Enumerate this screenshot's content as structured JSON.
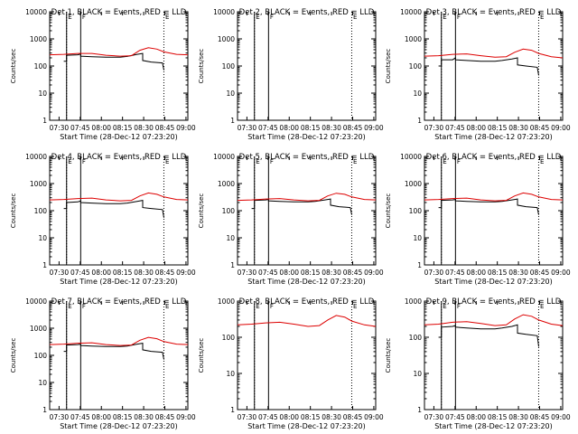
{
  "figure": {
    "panel_titles": [
      "Det 1, BLACK = Events, RED = LLD",
      "Det 2, BLACK = Events, RED = LLD",
      "Det 3, BLACK = Events, RED = LLD",
      "Det 4, BLACK = Events, RED = LLD",
      "Det 5, BLACK = Events, RED = LLD",
      "Det 6, BLACK = Events, RED = LLD",
      "Det 7, BLACK = Events, RED = LLD",
      "Det 8, BLACK = Events, RED = LLD",
      "Det 9, BLACK = Events, RED = LLD"
    ],
    "xlabel": "Start Time (28-Dec-12 07:23:20)",
    "ylabel": "Counts/sec",
    "x_tick_labels": [
      "07:30",
      "07:45",
      "08:00",
      "08:15",
      "08:30",
      "08:45",
      "09:00"
    ],
    "y_tick_labels": [
      "1",
      "10",
      "100",
      "1000",
      "10000"
    ],
    "flag_labels": [
      "E",
      "F",
      "E"
    ]
  },
  "colors": {
    "events": "#000000",
    "lld": "#dd0000",
    "axes": "#000000",
    "background": "#ffffff"
  },
  "chart_data": [
    {
      "type": "line",
      "title": "Det 1, BLACK = Events, RED = LLD",
      "xlabel": "Start Time (28-Dec-12 07:23:20)",
      "ylabel": "Counts/sec",
      "x_unit": "minutes after 07:23:20",
      "xlim": [
        0,
        98
      ],
      "ylim": [
        1,
        10000
      ],
      "y_scale": "log",
      "grid": false,
      "vlines_solid": [
        12,
        22
      ],
      "vlines_dotted": [
        12,
        81
      ],
      "series": [
        {
          "name": "Events",
          "x": [
            10,
            12,
            12,
            20,
            22,
            22,
            30,
            40,
            50,
            55,
            62,
            66,
            66,
            72,
            80,
            81
          ],
          "y": [
            150,
            150,
            250,
            260,
            280,
            230,
            220,
            210,
            210,
            225,
            270,
            290,
            160,
            140,
            130,
            70
          ]
        },
        {
          "name": "LLD",
          "x": [
            0,
            10,
            20,
            30,
            40,
            50,
            58,
            64,
            70,
            76,
            81,
            90,
            98
          ],
          "y": [
            260,
            270,
            290,
            290,
            250,
            230,
            240,
            380,
            470,
            420,
            330,
            270,
            260
          ]
        }
      ]
    },
    {
      "type": "line",
      "title": "Det 2, BLACK = Events, RED = LLD",
      "xlabel": "Start Time (28-Dec-12 07:23:20)",
      "ylabel": "Counts/sec",
      "x_unit": "minutes after 07:23:20",
      "xlim": [
        0,
        98
      ],
      "ylim": [
        1,
        10000
      ],
      "y_scale": "log",
      "grid": false,
      "vlines_solid": [
        12,
        22
      ],
      "vlines_dotted": [
        12,
        81
      ],
      "series": []
    },
    {
      "type": "line",
      "title": "Det 3, BLACK = Events, RED = LLD",
      "xlabel": "Start Time (28-Dec-12 07:23:20)",
      "ylabel": "Counts/sec",
      "x_unit": "minutes after 07:23:20",
      "xlim": [
        0,
        98
      ],
      "ylim": [
        1,
        10000
      ],
      "y_scale": "log",
      "grid": false,
      "vlines_solid": [
        12,
        22
      ],
      "vlines_dotted": [
        12,
        81
      ],
      "series": [
        {
          "name": "Events",
          "x": [
            10,
            12,
            12,
            20,
            22,
            22,
            30,
            40,
            50,
            55,
            62,
            66,
            66,
            72,
            80,
            81
          ],
          "y": [
            100,
            100,
            170,
            170,
            200,
            170,
            160,
            150,
            150,
            160,
            180,
            200,
            110,
            100,
            90,
            45
          ]
        },
        {
          "name": "LLD",
          "x": [
            0,
            10,
            20,
            30,
            40,
            50,
            58,
            64,
            70,
            76,
            81,
            90,
            98
          ],
          "y": [
            230,
            240,
            270,
            280,
            240,
            210,
            220,
            320,
            420,
            380,
            290,
            220,
            200
          ]
        }
      ]
    },
    {
      "type": "line",
      "title": "Det 4, BLACK = Events, RED = LLD",
      "xlabel": "Start Time (28-Dec-12 07:23:20)",
      "ylabel": "Counts/sec",
      "x_unit": "minutes after 07:23:20",
      "xlim": [
        0,
        98
      ],
      "ylim": [
        1,
        10000
      ],
      "y_scale": "log",
      "grid": false,
      "vlines_solid": [
        12,
        22
      ],
      "vlines_dotted": [
        12,
        81
      ],
      "series": [
        {
          "name": "Events",
          "x": [
            10,
            12,
            12,
            20,
            22,
            22,
            30,
            40,
            50,
            55,
            62,
            66,
            66,
            72,
            80,
            81
          ],
          "y": [
            120,
            120,
            200,
            210,
            230,
            200,
            190,
            180,
            180,
            190,
            220,
            240,
            130,
            120,
            110,
            55
          ]
        },
        {
          "name": "LLD",
          "x": [
            0,
            10,
            20,
            30,
            40,
            50,
            58,
            64,
            70,
            76,
            81,
            90,
            98
          ],
          "y": [
            250,
            260,
            280,
            290,
            250,
            230,
            240,
            350,
            450,
            400,
            320,
            260,
            250
          ]
        }
      ]
    },
    {
      "type": "line",
      "title": "Det 5, BLACK = Events, RED = LLD",
      "xlabel": "Start Time (28-Dec-12 07:23:20)",
      "ylabel": "Counts/sec",
      "x_unit": "minutes after 07:23:20",
      "xlim": [
        0,
        98
      ],
      "ylim": [
        1,
        10000
      ],
      "y_scale": "log",
      "grid": false,
      "vlines_solid": [
        12,
        22
      ],
      "vlines_dotted": [
        12,
        81
      ],
      "series": [
        {
          "name": "Events",
          "x": [
            10,
            12,
            12,
            20,
            22,
            22,
            30,
            40,
            50,
            55,
            62,
            66,
            66,
            72,
            80,
            81
          ],
          "y": [
            120,
            120,
            240,
            250,
            260,
            230,
            220,
            210,
            210,
            220,
            250,
            270,
            160,
            140,
            130,
            70
          ]
        },
        {
          "name": "LLD",
          "x": [
            0,
            10,
            20,
            30,
            40,
            50,
            58,
            64,
            70,
            76,
            81,
            90,
            98
          ],
          "y": [
            240,
            250,
            270,
            280,
            250,
            230,
            240,
            350,
            440,
            400,
            320,
            260,
            250
          ]
        }
      ]
    },
    {
      "type": "line",
      "title": "Det 6, BLACK = Events, RED = LLD",
      "xlabel": "Start Time (28-Dec-12 07:23:20)",
      "ylabel": "Counts/sec",
      "x_unit": "minutes after 07:23:20",
      "xlim": [
        0,
        98
      ],
      "ylim": [
        1,
        10000
      ],
      "y_scale": "log",
      "grid": false,
      "vlines_solid": [
        12,
        22
      ],
      "vlines_dotted": [
        12,
        81
      ],
      "series": [
        {
          "name": "Events",
          "x": [
            10,
            12,
            12,
            20,
            22,
            22,
            30,
            40,
            50,
            55,
            62,
            66,
            66,
            72,
            80,
            81
          ],
          "y": [
            130,
            130,
            240,
            250,
            260,
            230,
            220,
            210,
            210,
            220,
            250,
            270,
            160,
            140,
            130,
            70
          ]
        },
        {
          "name": "LLD",
          "x": [
            0,
            10,
            20,
            30,
            40,
            50,
            58,
            64,
            70,
            76,
            81,
            90,
            98
          ],
          "y": [
            250,
            260,
            280,
            290,
            250,
            230,
            240,
            350,
            450,
            400,
            320,
            260,
            250
          ]
        }
      ]
    },
    {
      "type": "line",
      "title": "Det 7, BLACK = Events, RED = LLD",
      "xlabel": "Start Time (28-Dec-12 07:23:20)",
      "ylabel": "Counts/sec",
      "x_unit": "minutes after 07:23:20",
      "xlim": [
        0,
        98
      ],
      "ylim": [
        1,
        10000
      ],
      "y_scale": "log",
      "grid": false,
      "vlines_solid": [
        12,
        22
      ],
      "vlines_dotted": [
        12,
        81
      ],
      "series": [
        {
          "name": "Events",
          "x": [
            10,
            12,
            12,
            20,
            22,
            22,
            30,
            40,
            50,
            55,
            62,
            66,
            66,
            72,
            80,
            81
          ],
          "y": [
            140,
            140,
            240,
            250,
            260,
            230,
            220,
            210,
            210,
            220,
            260,
            280,
            160,
            140,
            130,
            70
          ]
        },
        {
          "name": "LLD",
          "x": [
            0,
            10,
            20,
            30,
            40,
            50,
            58,
            64,
            70,
            76,
            81,
            90,
            98
          ],
          "y": [
            250,
            260,
            280,
            290,
            250,
            230,
            240,
            360,
            460,
            410,
            320,
            260,
            250
          ]
        }
      ]
    },
    {
      "type": "line",
      "title": "Det 8, BLACK = Events, RED = LLD",
      "xlabel": "Start Time (28-Dec-12 07:23:20)",
      "ylabel": "Counts/sec",
      "x_unit": "minutes after 07:23:20",
      "xlim": [
        0,
        98
      ],
      "ylim": [
        1,
        1000
      ],
      "y_scale": "log",
      "grid": false,
      "vlines_solid": [
        12,
        22
      ],
      "vlines_dotted": [
        12,
        81
      ],
      "series": [
        {
          "name": "LLD",
          "x": [
            0,
            10,
            20,
            30,
            40,
            50,
            58,
            64,
            70,
            76,
            81,
            90,
            98
          ],
          "y": [
            220,
            230,
            250,
            260,
            230,
            200,
            210,
            300,
            400,
            360,
            280,
            220,
            200
          ]
        }
      ]
    },
    {
      "type": "line",
      "title": "Det 9, BLACK = Events, RED = LLD",
      "xlabel": "Start Time (28-Dec-12 07:23:20)",
      "ylabel": "Counts/sec",
      "x_unit": "minutes after 07:23:20",
      "xlim": [
        0,
        98
      ],
      "ylim": [
        1,
        1000
      ],
      "y_scale": "log",
      "grid": false,
      "vlines_solid": [
        12,
        22
      ],
      "vlines_dotted": [
        12,
        81
      ],
      "series": [
        {
          "name": "Events",
          "x": [
            10,
            12,
            12,
            20,
            22,
            22,
            30,
            40,
            50,
            55,
            62,
            66,
            66,
            72,
            80,
            81
          ],
          "y": [
            100,
            100,
            190,
            200,
            210,
            190,
            180,
            170,
            170,
            180,
            200,
            220,
            130,
            120,
            110,
            55
          ]
        },
        {
          "name": "LLD",
          "x": [
            0,
            10,
            20,
            30,
            40,
            50,
            58,
            64,
            70,
            76,
            81,
            90,
            98
          ],
          "y": [
            220,
            230,
            260,
            270,
            240,
            210,
            220,
            320,
            420,
            380,
            300,
            230,
            210
          ]
        }
      ]
    }
  ]
}
